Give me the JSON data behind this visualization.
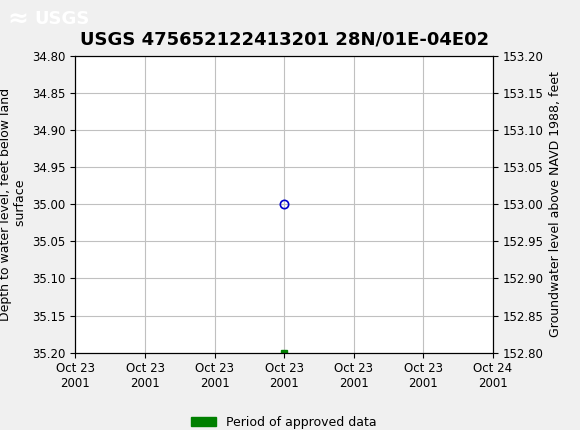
{
  "title": "USGS 475652122413201 28N/01E-04E02",
  "ylabel_left": "Depth to water level, feet below land\n surface",
  "ylabel_right": "Groundwater level above NAVD 1988, feet",
  "ylim_left": [
    35.2,
    34.8
  ],
  "ylim_right": [
    152.8,
    153.2
  ],
  "yticks_left": [
    34.8,
    34.85,
    34.9,
    34.95,
    35.0,
    35.05,
    35.1,
    35.15,
    35.2
  ],
  "yticks_right": [
    152.8,
    152.85,
    152.9,
    152.95,
    153.0,
    153.05,
    153.1,
    153.15,
    153.2
  ],
  "xlim": [
    0,
    6
  ],
  "xtick_labels": [
    "Oct 23\n2001",
    "Oct 23\n2001",
    "Oct 23\n2001",
    "Oct 23\n2001",
    "Oct 23\n2001",
    "Oct 23\n2001",
    "Oct 24\n2001"
  ],
  "xtick_positions": [
    0,
    1,
    2,
    3,
    4,
    5,
    6
  ],
  "data_point_x": 3.0,
  "data_point_y": 35.0,
  "data_point_color": "#0000cc",
  "data_bar_x": 3.0,
  "data_bar_y": 35.2,
  "data_bar_color": "#008000",
  "background_color": "#f0f0f0",
  "plot_bg_color": "#ffffff",
  "header_color": "#1a6b3c",
  "grid_color": "#c0c0c0",
  "title_fontsize": 13,
  "axis_label_fontsize": 9,
  "tick_fontsize": 8.5,
  "legend_label": "Period of approved data",
  "legend_color": "#008000"
}
